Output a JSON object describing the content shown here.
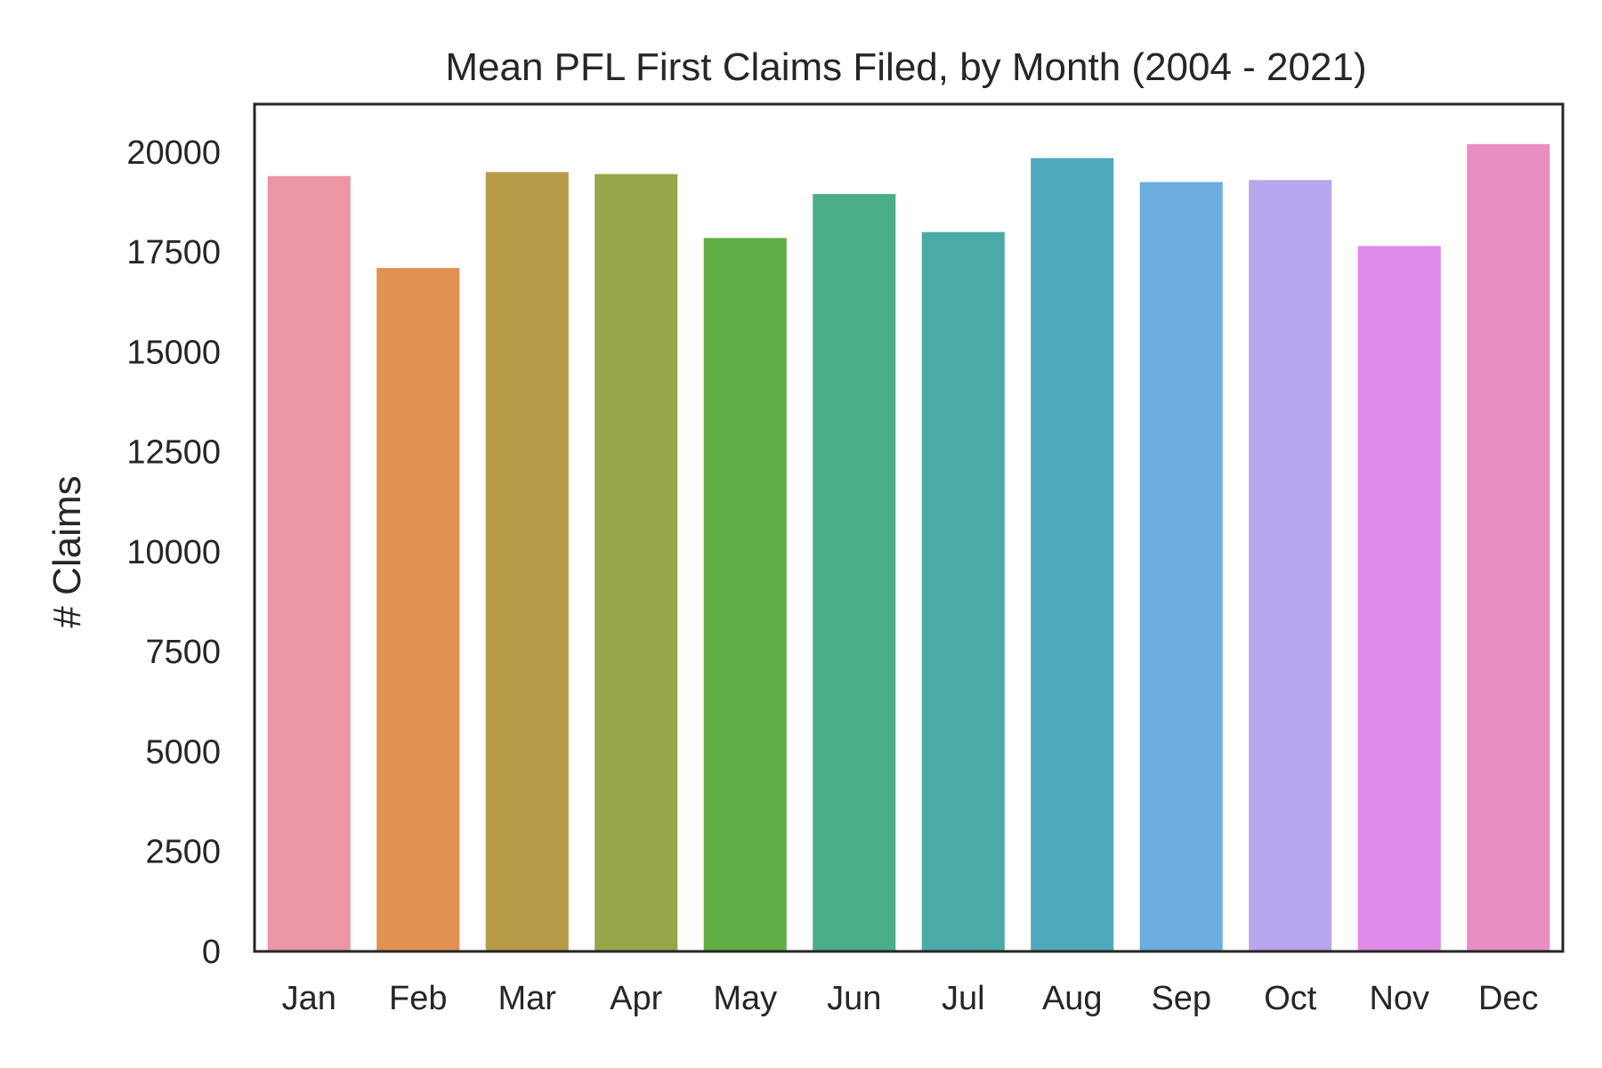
{
  "chart_data": {
    "type": "bar",
    "title": "Mean PFL First Claims Filed, by Month (2004 - 2021)",
    "xlabel": "",
    "ylabel": "# Claims",
    "ylim": [
      0,
      21200
    ],
    "yticks": [
      0,
      2500,
      5000,
      7500,
      10000,
      12500,
      15000,
      17500,
      20000
    ],
    "categories": [
      "Jan",
      "Feb",
      "Mar",
      "Apr",
      "May",
      "Jun",
      "Jul",
      "Aug",
      "Sep",
      "Oct",
      "Nov",
      "Dec"
    ],
    "values": [
      19400,
      17100,
      19500,
      19450,
      17850,
      18950,
      18000,
      19850,
      19250,
      19300,
      17650,
      20200
    ],
    "colors": [
      "#ea96a3",
      "#e19153",
      "#b89b48",
      "#98a54a",
      "#60af46",
      "#4aae88",
      "#4baaa5",
      "#4faabe",
      "#6badde",
      "#b6a6eb",
      "#de8ce8",
      "#e78fc3"
    ],
    "grid": false,
    "legend": "none"
  }
}
